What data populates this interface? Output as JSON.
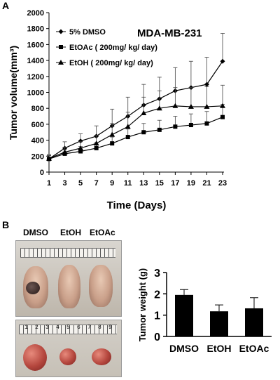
{
  "panels": {
    "a_label": "A",
    "b_label": "B"
  },
  "chart_data": [
    {
      "type": "line",
      "title": "MDA-MB-231",
      "xlabel": "Time (Days)",
      "ylabel": "Tumor volume(mm³)",
      "ylim": [
        0,
        2000
      ],
      "yticks": [
        0,
        200,
        400,
        600,
        800,
        1000,
        1200,
        1400,
        1600,
        1800,
        2000
      ],
      "xlim": [
        1,
        23
      ],
      "xticks": [
        1,
        3,
        5,
        7,
        9,
        11,
        13,
        15,
        17,
        19,
        21,
        23
      ],
      "x": [
        1,
        3,
        5,
        7,
        9,
        11,
        13,
        15,
        17,
        19,
        21,
        23
      ],
      "legend_position": "top-left",
      "series": [
        {
          "name": "5% DMSO",
          "marker": "diamond",
          "values": [
            165,
            300,
            390,
            450,
            580,
            700,
            840,
            920,
            1020,
            1060,
            1100,
            1390
          ],
          "errors": [
            60,
            80,
            90,
            130,
            210,
            240,
            260,
            270,
            290,
            330,
            340,
            350
          ]
        },
        {
          "name": "EtOAc ( 200mg/ kg/ day)",
          "marker": "square",
          "values": [
            165,
            230,
            260,
            300,
            360,
            440,
            500,
            530,
            570,
            590,
            610,
            690
          ],
          "errors": [
            40,
            50,
            60,
            70,
            80,
            100,
            110,
            120,
            130,
            140,
            150,
            160
          ]
        },
        {
          "name": "EtOH ( 200mg/ kg/ day)",
          "marker": "triangle",
          "values": [
            170,
            250,
            300,
            360,
            470,
            570,
            740,
            800,
            830,
            820,
            820,
            830
          ],
          "errors": [
            40,
            60,
            80,
            100,
            140,
            180,
            200,
            220,
            230,
            240,
            250,
            260
          ]
        }
      ]
    },
    {
      "type": "bar",
      "ylabel": "Tumor weight (g)",
      "ylim": [
        0,
        3
      ],
      "yticks": [
        0,
        1,
        2,
        3
      ],
      "categories": [
        "DMSO",
        "EtOH",
        "EtOAc"
      ],
      "values": [
        1.95,
        1.18,
        1.32
      ],
      "errors": [
        0.25,
        0.3,
        0.5
      ]
    }
  ],
  "photo": {
    "labels": [
      "DMSO",
      "EtOH",
      "EtOAc"
    ],
    "ruler_numbers": [
      "1",
      "2",
      "3",
      "4",
      "5",
      "6",
      "7",
      "8",
      "9"
    ]
  }
}
